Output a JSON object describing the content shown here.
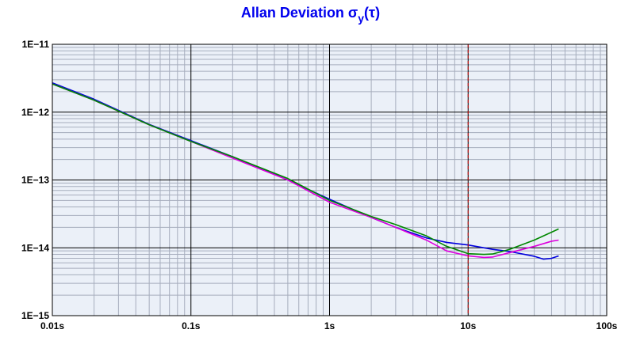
{
  "title": {
    "main": "Allan Deviation σ",
    "sub": "y",
    "suffix": "(τ)"
  },
  "chart_data": {
    "type": "line",
    "title": "Allan Deviation σy(τ)",
    "x_scale": "log",
    "y_scale": "log",
    "xlim": [
      0.01,
      100
    ],
    "ylim": [
      1e-15,
      1e-11
    ],
    "grid": true,
    "xticks": [
      {
        "value": 0.01,
        "label": "0.01s"
      },
      {
        "value": 0.1,
        "label": "0.1s"
      },
      {
        "value": 1,
        "label": "1s"
      },
      {
        "value": 10,
        "label": "10s"
      },
      {
        "value": 100,
        "label": "100s"
      }
    ],
    "yticks": [
      {
        "value": 1e-11,
        "label": "1E−11"
      },
      {
        "value": 1e-12,
        "label": "1E−12"
      },
      {
        "value": 1e-13,
        "label": "1E−13"
      },
      {
        "value": 1e-14,
        "label": "1E−14"
      },
      {
        "value": 1e-15,
        "label": "1E−15"
      }
    ],
    "reference_line": {
      "x": 10,
      "color": "#cc0000",
      "style": "dashed"
    },
    "series": [
      {
        "color": "#0000dd",
        "x": [
          0.01,
          0.02,
          0.05,
          0.1,
          0.2,
          0.5,
          1,
          2,
          3,
          5,
          7,
          10,
          15,
          20,
          30,
          35,
          40,
          45
        ],
        "y": [
          2.7e-12,
          1.55e-12,
          6.6e-13,
          3.8e-13,
          2.2e-13,
          1e-13,
          5.2e-14,
          2.8e-14,
          2e-14,
          1.4e-14,
          1.2e-14,
          1.1e-14,
          9.5e-15,
          8.8e-15,
          7.5e-15,
          6.8e-15,
          7e-15,
          7.6e-15
        ]
      },
      {
        "color": "#dd00dd",
        "x": [
          0.01,
          0.02,
          0.05,
          0.1,
          0.2,
          0.5,
          1,
          2,
          3,
          5,
          7,
          10,
          13,
          15,
          20,
          30,
          40,
          45
        ],
        "y": [
          2.6e-12,
          1.5e-12,
          6.5e-13,
          3.7e-13,
          2.1e-13,
          1e-13,
          4.7e-14,
          2.8e-14,
          2e-14,
          1.3e-14,
          9e-15,
          7.6e-15,
          7.2e-15,
          7.3e-15,
          8.5e-15,
          1.05e-14,
          1.25e-14,
          1.3e-14
        ]
      },
      {
        "color": "#008800",
        "x": [
          0.01,
          0.02,
          0.05,
          0.1,
          0.2,
          0.5,
          1,
          2,
          3,
          5,
          7,
          10,
          13,
          15,
          20,
          30,
          40,
          45
        ],
        "y": [
          2.6e-12,
          1.5e-12,
          6.5e-13,
          3.7e-13,
          2.2e-13,
          1.05e-13,
          5e-14,
          2.9e-14,
          2.2e-14,
          1.5e-14,
          1.05e-14,
          8.2e-15,
          8e-15,
          8.1e-15,
          9.5e-15,
          1.3e-14,
          1.7e-14,
          1.9e-14
        ]
      }
    ]
  }
}
